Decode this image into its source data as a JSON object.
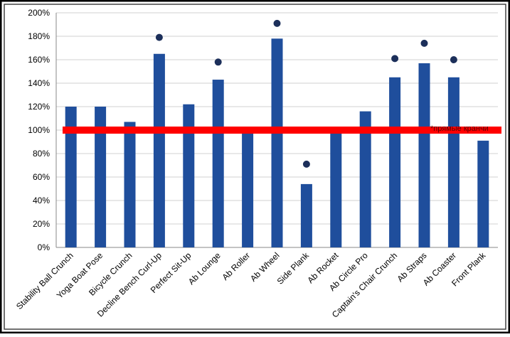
{
  "chart_data": {
    "type": "bar",
    "title": "",
    "xlabel": "",
    "ylabel": "",
    "ylim": [
      0,
      200
    ],
    "y_ticks": [
      0,
      20,
      40,
      60,
      80,
      100,
      120,
      140,
      160,
      180,
      200
    ],
    "y_tick_suffix": "%",
    "grid": true,
    "categories": [
      "Stability Ball Crunch",
      "Yoga Boat Pose",
      "Bicycle Crunch",
      "Decline Bench Curl-Up",
      "Perfect Sit-Up",
      "Ab Lounge",
      "Ab Roller",
      "Ab Wheel",
      "Side Plank",
      "Ab Rocket",
      "Ab Circle Pro",
      "Captain's Chair Crunch",
      "Ab Straps",
      "Ab Coaster",
      "Front Plank"
    ],
    "values": [
      120,
      120,
      107,
      165,
      122,
      143,
      100,
      178,
      54,
      100,
      116,
      145,
      157,
      145,
      91
    ],
    "markers": [
      null,
      null,
      null,
      179,
      null,
      158,
      null,
      191,
      71,
      null,
      null,
      161,
      174,
      160,
      null
    ],
    "reference_line": {
      "value": 100,
      "label": "*прямые кранчи"
    },
    "colors": {
      "bar": "#1f4e9c",
      "marker": "#1c2f5a",
      "reference": "#ff0000",
      "grid": "#d0d0d0",
      "text": "#000000"
    }
  }
}
